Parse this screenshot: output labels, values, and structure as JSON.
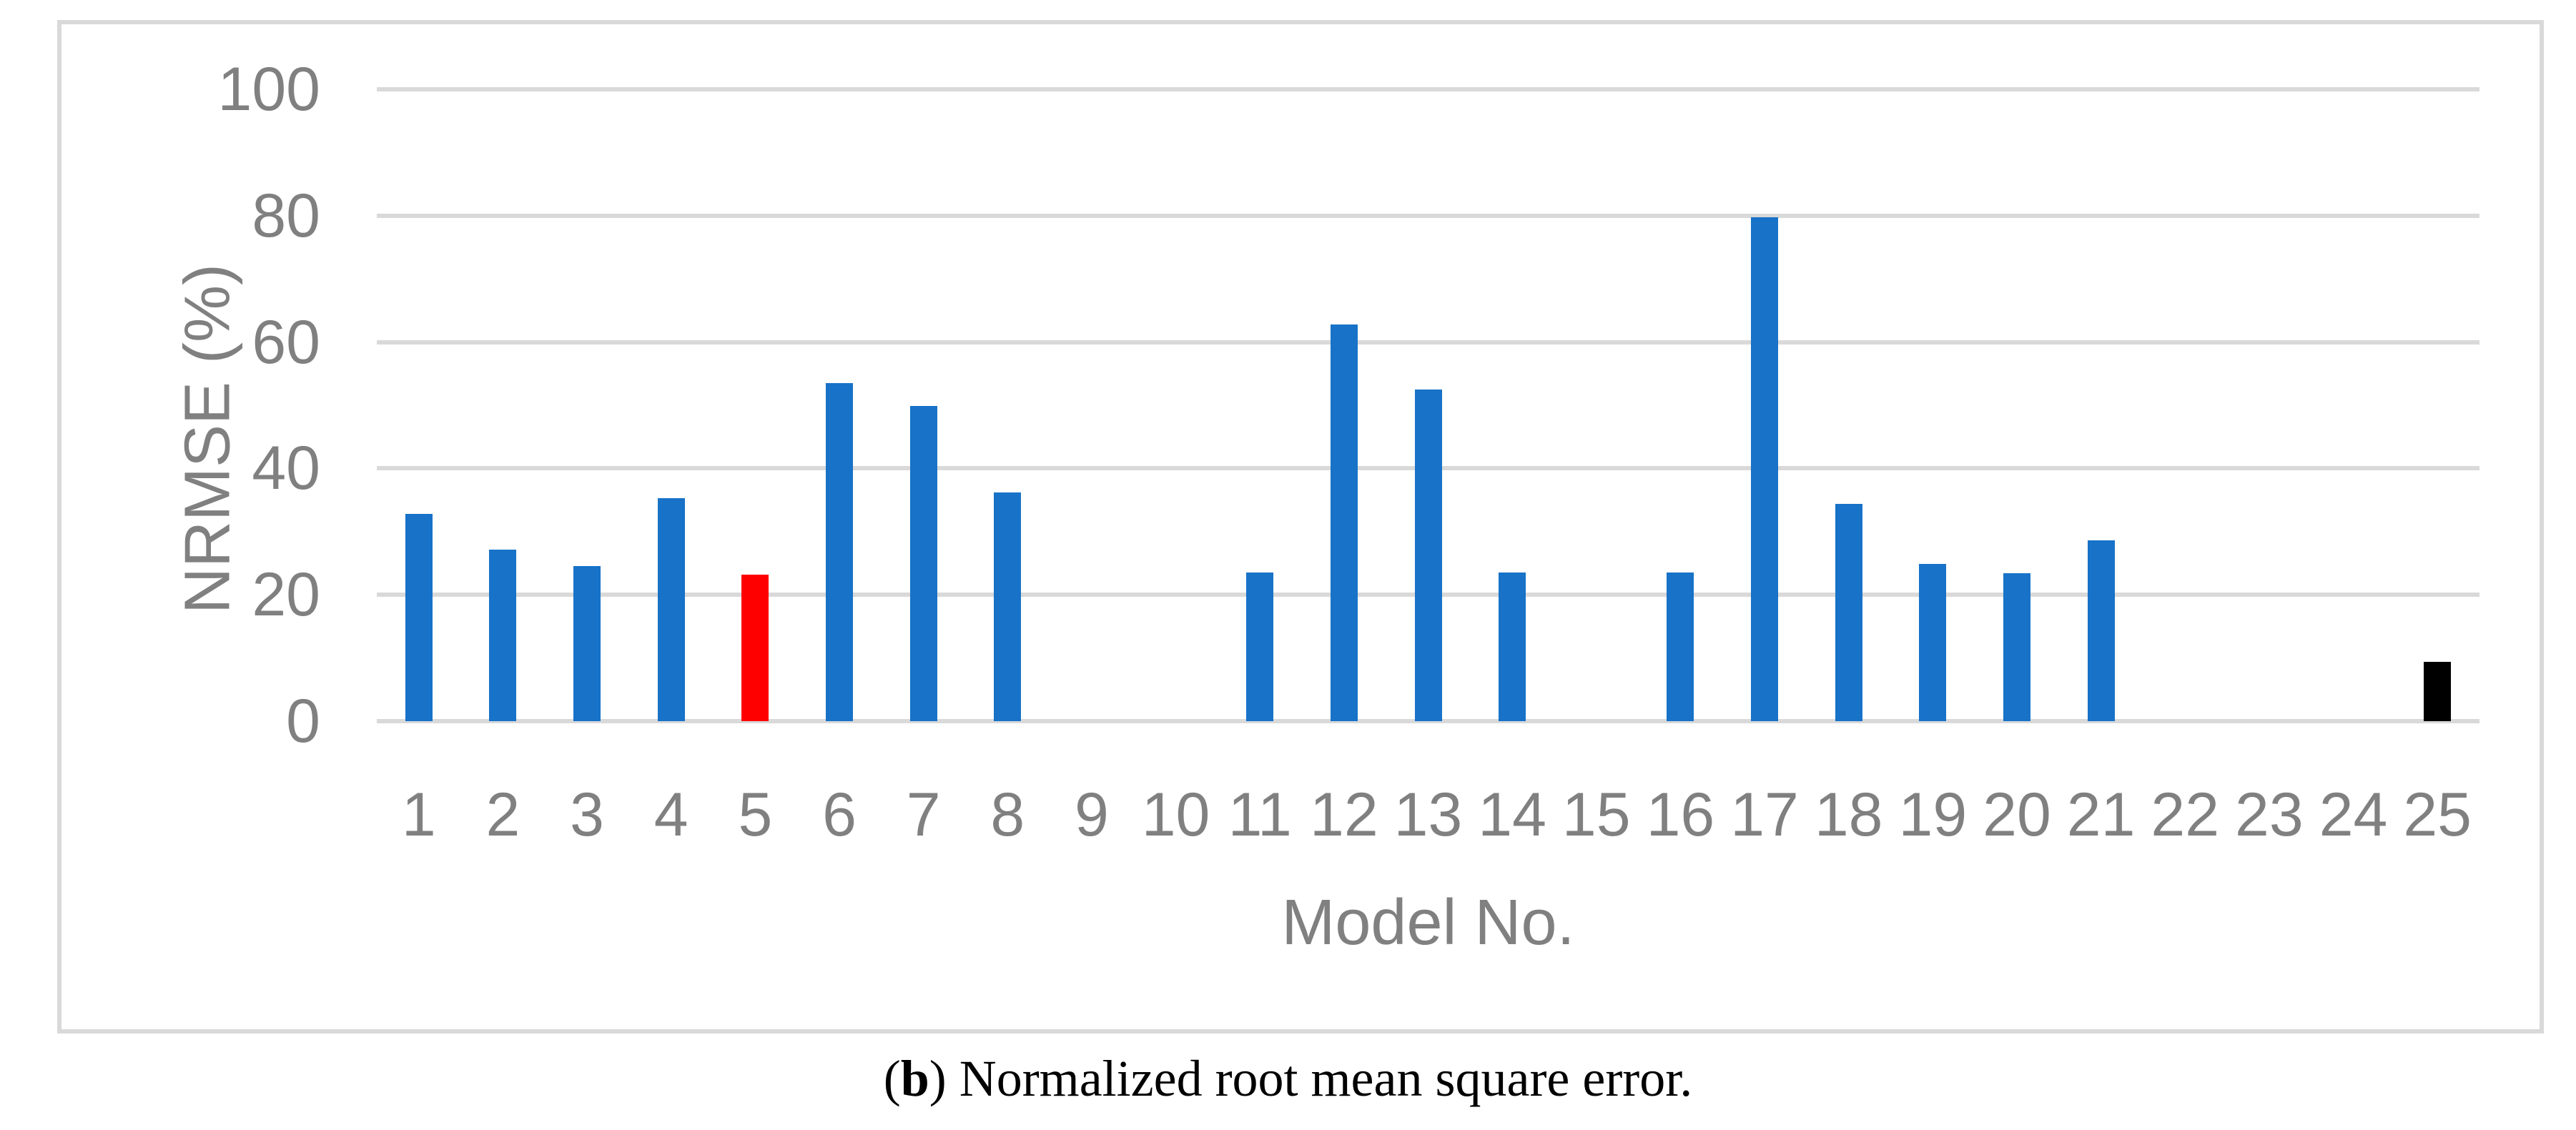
{
  "chart_data": {
    "type": "bar",
    "title": "",
    "xlabel": "Model No.",
    "ylabel": "NRMSE (%)",
    "categories": [
      1,
      2,
      3,
      4,
      5,
      6,
      7,
      8,
      9,
      10,
      11,
      12,
      13,
      14,
      15,
      16,
      17,
      18,
      19,
      20,
      21,
      22,
      23,
      24,
      25
    ],
    "values": [
      32.8,
      27.1,
      24.6,
      35.3,
      23.2,
      53.5,
      49.9,
      36.2,
      0,
      0,
      23.5,
      62.8,
      52.5,
      23.5,
      0,
      23.5,
      79.8,
      34.4,
      24.9,
      23.4,
      28.6,
      0,
      0,
      0,
      9.4
    ],
    "bar_colors": {
      "default": "#1772C8",
      "5": "#FF0000",
      "25": "#000000"
    },
    "ylim": [
      0,
      100
    ],
    "yticks": [
      0,
      20,
      40,
      60,
      80,
      100
    ],
    "grid": "horizontal",
    "gridline_color": "#D9D9D9",
    "frame_border_color": "#D9D9D9",
    "axis_text_color": "#808080",
    "legend": "none"
  },
  "caption": {
    "prefix": "(",
    "bold": "b",
    "suffix": ") Normalized root mean square error."
  }
}
